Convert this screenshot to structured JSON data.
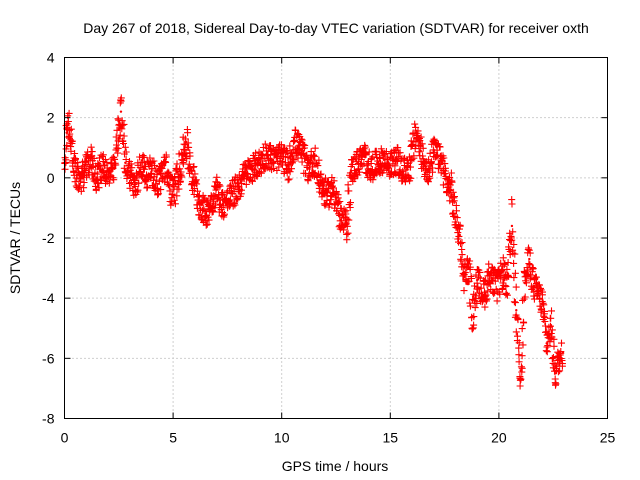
{
  "chart_data": {
    "type": "scatter",
    "title": "Day 267 of 2018, Sidereal Day-to-day VTEC variation (SDTVAR) for receiver oxth",
    "xlabel": "GPS time / hours",
    "ylabel": "SDTVAR / TECUs",
    "xlim": [
      0,
      25
    ],
    "ylim": [
      -8,
      4
    ],
    "xticks": [
      0,
      5,
      10,
      15,
      20,
      25
    ],
    "yticks": [
      -8,
      -6,
      -4,
      -2,
      0,
      2,
      4
    ],
    "xtick_labels": [
      "0",
      "5",
      "10",
      "15",
      "20",
      "25"
    ],
    "ytick_labels": [
      "-8",
      "-6",
      "-4",
      "-2",
      "0",
      "2",
      "4"
    ],
    "grid": true,
    "marker": "+",
    "series": [
      {
        "name": "SDTVAR",
        "color": "#ff0000",
        "trend": [
          [
            0.0,
            0.3
          ],
          [
            0.1,
            1.5
          ],
          [
            0.2,
            1.8
          ],
          [
            0.3,
            1.2
          ],
          [
            0.4,
            0.6
          ],
          [
            0.5,
            0.2
          ],
          [
            0.7,
            -0.1
          ],
          [
            1.0,
            0.3
          ],
          [
            1.2,
            0.6
          ],
          [
            1.5,
            0.0
          ],
          [
            1.8,
            0.5
          ],
          [
            2.0,
            0.0
          ],
          [
            2.3,
            0.3
          ],
          [
            2.5,
            1.6
          ],
          [
            2.6,
            2.2
          ],
          [
            2.8,
            0.5
          ],
          [
            3.0,
            0.2
          ],
          [
            3.3,
            -0.4
          ],
          [
            3.5,
            0.5
          ],
          [
            3.8,
            0.1
          ],
          [
            4.0,
            0.3
          ],
          [
            4.3,
            -0.2
          ],
          [
            4.6,
            0.4
          ],
          [
            5.0,
            -0.6
          ],
          [
            5.3,
            0.3
          ],
          [
            5.6,
            1.2
          ],
          [
            5.9,
            0.0
          ],
          [
            6.2,
            -0.8
          ],
          [
            6.5,
            -1.2
          ],
          [
            6.7,
            -0.9
          ],
          [
            7.0,
            -0.4
          ],
          [
            7.3,
            -0.9
          ],
          [
            7.6,
            -0.7
          ],
          [
            8.0,
            -0.3
          ],
          [
            8.3,
            0.1
          ],
          [
            8.6,
            0.3
          ],
          [
            9.0,
            0.5
          ],
          [
            9.3,
            0.8
          ],
          [
            9.6,
            0.6
          ],
          [
            10.0,
            0.7
          ],
          [
            10.3,
            0.4
          ],
          [
            10.6,
            1.2
          ],
          [
            10.9,
            0.9
          ],
          [
            11.2,
            0.3
          ],
          [
            11.5,
            0.6
          ],
          [
            11.8,
            -0.2
          ],
          [
            12.1,
            -0.6
          ],
          [
            12.4,
            -0.3
          ],
          [
            12.7,
            -1.4
          ],
          [
            13.0,
            -1.5
          ],
          [
            13.2,
            0.2
          ],
          [
            13.5,
            0.5
          ],
          [
            13.8,
            0.7
          ],
          [
            14.1,
            0.3
          ],
          [
            14.4,
            0.5
          ],
          [
            14.7,
            0.6
          ],
          [
            15.0,
            0.4
          ],
          [
            15.3,
            0.6
          ],
          [
            15.6,
            0.2
          ],
          [
            15.9,
            0.4
          ],
          [
            16.2,
            1.5
          ],
          [
            16.4,
            0.9
          ],
          [
            16.6,
            0.4
          ],
          [
            16.8,
            0.2
          ],
          [
            17.0,
            0.9
          ],
          [
            17.2,
            0.7
          ],
          [
            17.4,
            0.5
          ],
          [
            17.6,
            -0.2
          ],
          [
            17.8,
            -0.4
          ],
          [
            18.0,
            -1.3
          ],
          [
            18.2,
            -1.9
          ],
          [
            18.4,
            -3.3
          ],
          [
            18.6,
            -3.0
          ],
          [
            18.8,
            -4.6
          ],
          [
            19.0,
            -3.4
          ],
          [
            19.3,
            -3.9
          ],
          [
            19.6,
            -3.2
          ],
          [
            19.9,
            -3.7
          ],
          [
            20.2,
            -3.1
          ],
          [
            20.4,
            -3.6
          ],
          [
            20.6,
            -1.6
          ],
          [
            20.8,
            -4.4
          ],
          [
            21.0,
            -6.4
          ],
          [
            21.2,
            -3.5
          ],
          [
            21.4,
            -2.7
          ],
          [
            21.6,
            -3.6
          ],
          [
            21.8,
            -3.8
          ],
          [
            22.0,
            -4.2
          ],
          [
            22.2,
            -5.5
          ],
          [
            22.4,
            -4.9
          ],
          [
            22.6,
            -6.5
          ],
          [
            22.8,
            -6.0
          ],
          [
            22.95,
            -5.8
          ]
        ]
      }
    ]
  }
}
